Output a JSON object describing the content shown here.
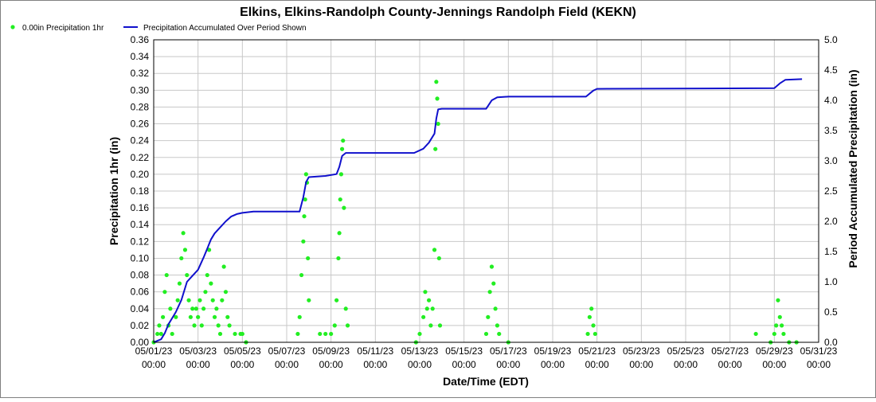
{
  "chart_data": {
    "type": "scatter",
    "title": "Elkins, Elkins-Randolph County-Jennings Randolph Field (KEKN)",
    "xlabel": "Date/Time (EDT)",
    "ylabel": "Precipitation 1hr (in)",
    "y2label": "Period Accumulated Precipitation (in)",
    "ylim": [
      0,
      0.36
    ],
    "y2lim": [
      0,
      5.0
    ],
    "xlim": [
      "05/01/23 00:00",
      "05/31/23 00:00"
    ],
    "grid": true,
    "legend_placement": "top-left",
    "x_ticks": [
      {
        "date": "05/01/23",
        "time": "00:00"
      },
      {
        "date": "05/03/23",
        "time": "00:00"
      },
      {
        "date": "05/05/23",
        "time": "00:00"
      },
      {
        "date": "05/07/23",
        "time": "00:00"
      },
      {
        "date": "05/09/23",
        "time": "00:00"
      },
      {
        "date": "05/11/23",
        "time": "00:00"
      },
      {
        "date": "05/13/23",
        "time": "00:00"
      },
      {
        "date": "05/15/23",
        "time": "00:00"
      },
      {
        "date": "05/17/23",
        "time": "00:00"
      },
      {
        "date": "05/19/23",
        "time": "00:00"
      },
      {
        "date": "05/21/23",
        "time": "00:00"
      },
      {
        "date": "05/23/23",
        "time": "00:00"
      },
      {
        "date": "05/25/23",
        "time": "00:00"
      },
      {
        "date": "05/27/23",
        "time": "00:00"
      },
      {
        "date": "05/29/23",
        "time": "00:00"
      },
      {
        "date": "05/31/23",
        "time": "00:00"
      }
    ],
    "y_ticks": [
      "0.00",
      "0.02",
      "0.04",
      "0.06",
      "0.08",
      "0.10",
      "0.12",
      "0.14",
      "0.16",
      "0.18",
      "0.20",
      "0.22",
      "0.24",
      "0.26",
      "0.28",
      "0.30",
      "0.32",
      "0.34",
      "0.36"
    ],
    "y2_ticks": [
      "0.0",
      "0.5",
      "1.0",
      "1.5",
      "2.0",
      "2.5",
      "3.0",
      "3.5",
      "4.0",
      "4.5",
      "5.0"
    ],
    "series": [
      {
        "name": "0.00in Precipitation 1hr",
        "kind": "scatter",
        "color": "#22ee22",
        "points": [
          [
            "05/01/23 00:00",
            0.0
          ],
          [
            "05/01/23 04:00",
            0.01
          ],
          [
            "05/01/23 06:00",
            0.02
          ],
          [
            "05/01/23 08:00",
            0.01
          ],
          [
            "05/01/23 10:00",
            0.03
          ],
          [
            "05/01/23 12:00",
            0.06
          ],
          [
            "05/01/23 14:00",
            0.08
          ],
          [
            "05/01/23 16:00",
            0.02
          ],
          [
            "05/01/23 18:00",
            0.04
          ],
          [
            "05/01/23 20:00",
            0.01
          ],
          [
            "05/02/23 00:00",
            0.03
          ],
          [
            "05/02/23 02:00",
            0.05
          ],
          [
            "05/02/23 04:00",
            0.07
          ],
          [
            "05/02/23 06:00",
            0.1
          ],
          [
            "05/02/23 08:00",
            0.13
          ],
          [
            "05/02/23 10:00",
            0.11
          ],
          [
            "05/02/23 12:00",
            0.08
          ],
          [
            "05/02/23 14:00",
            0.05
          ],
          [
            "05/02/23 16:00",
            0.03
          ],
          [
            "05/02/23 18:00",
            0.04
          ],
          [
            "05/02/23 20:00",
            0.02
          ],
          [
            "05/02/23 22:00",
            0.04
          ],
          [
            "05/03/23 00:00",
            0.03
          ],
          [
            "05/03/23 02:00",
            0.05
          ],
          [
            "05/03/23 04:00",
            0.02
          ],
          [
            "05/03/23 06:00",
            0.04
          ],
          [
            "05/03/23 08:00",
            0.06
          ],
          [
            "05/03/23 10:00",
            0.08
          ],
          [
            "05/03/23 12:00",
            0.11
          ],
          [
            "05/03/23 14:00",
            0.07
          ],
          [
            "05/03/23 16:00",
            0.05
          ],
          [
            "05/03/23 18:00",
            0.03
          ],
          [
            "05/03/23 20:00",
            0.04
          ],
          [
            "05/03/23 22:00",
            0.02
          ],
          [
            "05/04/23 00:00",
            0.01
          ],
          [
            "05/04/23 02:00",
            0.05
          ],
          [
            "05/04/23 04:00",
            0.09
          ],
          [
            "05/04/23 06:00",
            0.06
          ],
          [
            "05/04/23 08:00",
            0.03
          ],
          [
            "05/04/23 10:00",
            0.02
          ],
          [
            "05/04/23 16:00",
            0.01
          ],
          [
            "05/04/23 22:00",
            0.01
          ],
          [
            "05/05/23 00:00",
            0.01
          ],
          [
            "05/05/23 04:00",
            0.0
          ],
          [
            "05/07/23 12:00",
            0.01
          ],
          [
            "05/07/23 14:00",
            0.03
          ],
          [
            "05/07/23 16:00",
            0.08
          ],
          [
            "05/07/23 18:00",
            0.12
          ],
          [
            "05/07/23 19:00",
            0.15
          ],
          [
            "05/07/23 20:00",
            0.17
          ],
          [
            "05/07/23 21:00",
            0.2
          ],
          [
            "05/07/23 22:00",
            0.19
          ],
          [
            "05/07/23 23:00",
            0.1
          ],
          [
            "05/08/23 00:00",
            0.05
          ],
          [
            "05/08/23 12:00",
            0.01
          ],
          [
            "05/08/23 18:00",
            0.01
          ],
          [
            "05/09/23 00:00",
            0.01
          ],
          [
            "05/09/23 04:00",
            0.02
          ],
          [
            "05/09/23 06:00",
            0.05
          ],
          [
            "05/09/23 08:00",
            0.1
          ],
          [
            "05/09/23 09:00",
            0.13
          ],
          [
            "05/09/23 10:00",
            0.17
          ],
          [
            "05/09/23 11:00",
            0.2
          ],
          [
            "05/09/23 12:00",
            0.23
          ],
          [
            "05/09/23 13:00",
            0.24
          ],
          [
            "05/09/23 14:00",
            0.16
          ],
          [
            "05/09/23 16:00",
            0.04
          ],
          [
            "05/09/23 18:00",
            0.02
          ],
          [
            "05/12/23 20:00",
            0.0
          ],
          [
            "05/13/23 00:00",
            0.01
          ],
          [
            "05/13/23 04:00",
            0.03
          ],
          [
            "05/13/23 06:00",
            0.06
          ],
          [
            "05/13/23 08:00",
            0.04
          ],
          [
            "05/13/23 10:00",
            0.05
          ],
          [
            "05/13/23 12:00",
            0.02
          ],
          [
            "05/13/23 14:00",
            0.04
          ],
          [
            "05/13/23 16:00",
            0.11
          ],
          [
            "05/13/23 17:00",
            0.23
          ],
          [
            "05/13/23 18:00",
            0.31
          ],
          [
            "05/13/23 19:00",
            0.29
          ],
          [
            "05/13/23 20:00",
            0.26
          ],
          [
            "05/13/23 21:00",
            0.1
          ],
          [
            "05/13/23 22:00",
            0.02
          ],
          [
            "05/16/23 00:00",
            0.01
          ],
          [
            "05/16/23 02:00",
            0.03
          ],
          [
            "05/16/23 04:00",
            0.06
          ],
          [
            "05/16/23 06:00",
            0.09
          ],
          [
            "05/16/23 08:00",
            0.07
          ],
          [
            "05/16/23 10:00",
            0.04
          ],
          [
            "05/16/23 12:00",
            0.02
          ],
          [
            "05/16/23 14:00",
            0.01
          ],
          [
            "05/17/23 00:00",
            0.0
          ],
          [
            "05/20/23 14:00",
            0.01
          ],
          [
            "05/20/23 16:00",
            0.03
          ],
          [
            "05/20/23 18:00",
            0.04
          ],
          [
            "05/20/23 20:00",
            0.02
          ],
          [
            "05/20/23 22:00",
            0.01
          ],
          [
            "05/28/23 04:00",
            0.01
          ],
          [
            "05/28/23 20:00",
            0.0
          ],
          [
            "05/29/23 00:00",
            0.01
          ],
          [
            "05/29/23 02:00",
            0.02
          ],
          [
            "05/29/23 04:00",
            0.05
          ],
          [
            "05/29/23 06:00",
            0.03
          ],
          [
            "05/29/23 08:00",
            0.02
          ],
          [
            "05/29/23 10:00",
            0.01
          ],
          [
            "05/29/23 16:00",
            0.0
          ],
          [
            "05/30/23 00:00",
            0.0
          ]
        ]
      },
      {
        "name": "Precipitation Accumulated Over Period Shown",
        "kind": "line",
        "color": "#1010cc",
        "points": [
          [
            "05/01/23 00:00",
            0.0
          ],
          [
            "05/01/23 08:00",
            0.05
          ],
          [
            "05/01/23 12:00",
            0.15
          ],
          [
            "05/01/23 16:00",
            0.3
          ],
          [
            "05/01/23 20:00",
            0.4
          ],
          [
            "05/02/23 00:00",
            0.5
          ],
          [
            "05/02/23 06:00",
            0.7
          ],
          [
            "05/02/23 12:00",
            1.0
          ],
          [
            "05/02/23 18:00",
            1.1
          ],
          [
            "05/03/23 00:00",
            1.2
          ],
          [
            "05/03/23 06:00",
            1.4
          ],
          [
            "05/03/23 10:00",
            1.55
          ],
          [
            "05/03/23 14:00",
            1.7
          ],
          [
            "05/03/23 18:00",
            1.8
          ],
          [
            "05/04/23 00:00",
            1.9
          ],
          [
            "05/04/23 06:00",
            2.0
          ],
          [
            "05/04/23 12:00",
            2.08
          ],
          [
            "05/04/23 18:00",
            2.12
          ],
          [
            "05/05/23 00:00",
            2.14
          ],
          [
            "05/05/23 12:00",
            2.16
          ],
          [
            "05/07/23 14:00",
            2.16
          ],
          [
            "05/07/23 18:00",
            2.4
          ],
          [
            "05/07/23 21:00",
            2.65
          ],
          [
            "05/08/23 00:00",
            2.73
          ],
          [
            "05/08/23 18:00",
            2.75
          ],
          [
            "05/09/23 06:00",
            2.78
          ],
          [
            "05/09/23 09:00",
            2.9
          ],
          [
            "05/09/23 12:00",
            3.08
          ],
          [
            "05/09/23 16:00",
            3.13
          ],
          [
            "05/10/23 00:00",
            3.13
          ],
          [
            "05/12/23 18:00",
            3.13
          ],
          [
            "05/13/23 04:00",
            3.2
          ],
          [
            "05/13/23 10:00",
            3.3
          ],
          [
            "05/13/23 16:00",
            3.45
          ],
          [
            "05/13/23 18:00",
            3.7
          ],
          [
            "05/13/23 20:00",
            3.85
          ],
          [
            "05/14/23 00:00",
            3.86
          ],
          [
            "05/16/23 00:00",
            3.86
          ],
          [
            "05/16/23 06:00",
            4.0
          ],
          [
            "05/16/23 12:00",
            4.05
          ],
          [
            "05/17/23 00:00",
            4.06
          ],
          [
            "05/20/23 12:00",
            4.06
          ],
          [
            "05/20/23 20:00",
            4.16
          ],
          [
            "05/21/23 00:00",
            4.19
          ],
          [
            "05/29/23 00:00",
            4.2
          ],
          [
            "05/29/23 06:00",
            4.28
          ],
          [
            "05/29/23 12:00",
            4.34
          ],
          [
            "05/30/23 06:00",
            4.35
          ]
        ]
      }
    ]
  }
}
